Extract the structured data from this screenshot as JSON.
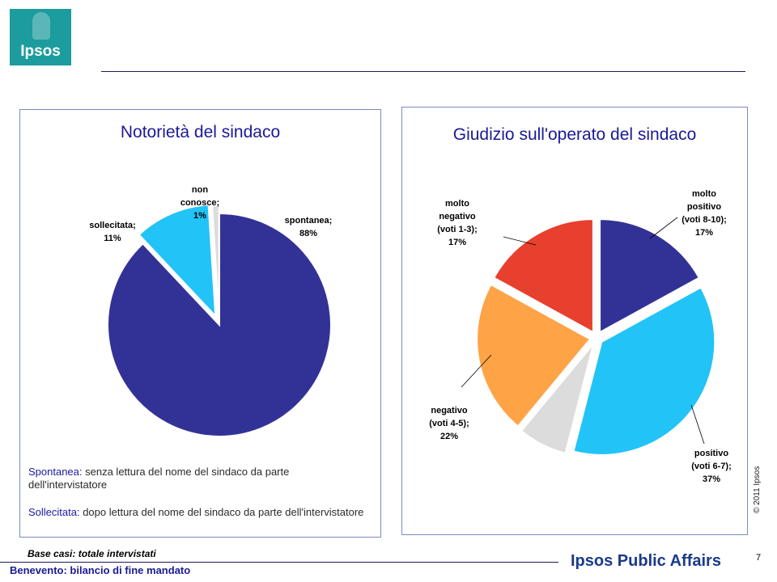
{
  "logo": {
    "text": "Ipsos"
  },
  "colors": {
    "dark_blue": "#323296",
    "light_blue": "#22c3f7",
    "light_grey": "#dcdcdc",
    "orange": "#ffa347",
    "red": "#e8402e",
    "title_blue": "#1a1a96"
  },
  "left_notes": {
    "spontanea_term": "Spontanea:",
    "spontanea_text": " senza lettura del nome del sindaco da parte dell'intervistatore",
    "sollecitata_term": "Sollecitata:",
    "sollecitata_text": " dopo lettura del nome del sindaco da parte dell'intervistatore"
  },
  "footer": {
    "base": "Base casi: totale intervistati",
    "title": "Benevento: bilancio di fine mandato",
    "brand": "Ipsos Public Affairs",
    "page": "7",
    "copyright": "© 2011 Ipsos"
  },
  "chart_data": [
    {
      "type": "pie",
      "title": "Notorietà del sindaco",
      "slices": [
        {
          "label": [
            "spontanea;",
            "88%"
          ],
          "value": 88,
          "color": "#323296"
        },
        {
          "label": [
            "sollecitata;",
            "11%"
          ],
          "value": 11,
          "color": "#22c3f7"
        },
        {
          "label": [
            "non",
            "conosce;",
            "1%"
          ],
          "value": 1,
          "color": "#dcdcdc"
        }
      ]
    },
    {
      "type": "pie",
      "title": "Giudizio sull'operato del sindaco",
      "slices": [
        {
          "label": [
            "molto",
            "positivo",
            "(voti 8-10);",
            "17%"
          ],
          "value": 17,
          "color": "#323296"
        },
        {
          "label": [
            "positivo",
            "(voti 6-7);",
            "37%"
          ],
          "value": 37,
          "color": "#22c3f7"
        },
        {
          "label": [],
          "value": 7,
          "color": "#dcdcdc"
        },
        {
          "label": [
            "negativo",
            "(voti 4-5);",
            "22%"
          ],
          "value": 22,
          "color": "#ffa347"
        },
        {
          "label": [
            "molto",
            "negativo",
            "(voti 1-3);",
            "17%"
          ],
          "value": 17,
          "color": "#e8402e"
        }
      ]
    }
  ]
}
